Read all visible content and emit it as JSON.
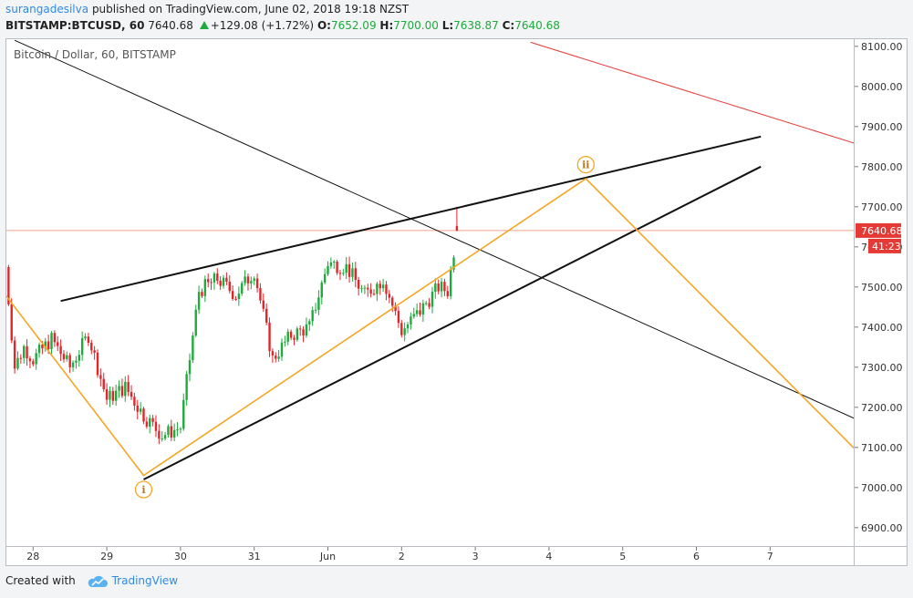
{
  "header": {
    "author": "surangadesilva",
    "published": "published on TradingView.com, June 02, 2018 19:18 NZST",
    "symbol": "BITSTAMP:BTCUSD, 60",
    "price": "7640.68",
    "change": "+129.08 (+1.72%)",
    "o_label": "O:",
    "o_value": "7652.09",
    "h_label": "H:",
    "h_value": "7700.00",
    "l_label": "L:",
    "l_value": "7638.87",
    "c_label": "C:",
    "c_value": "7640.68"
  },
  "legend": "Bitcoin / Dollar, 60, BITSTAMP",
  "price_tag": {
    "value": "7640.68",
    "countdown": "41:23"
  },
  "wave_labels": [
    "i",
    "ii"
  ],
  "footer": {
    "created": "Created with",
    "brand": "TradingView"
  },
  "colors": {
    "up": "#1eaa3c",
    "down": "#e0262b",
    "wave": "#f5a623",
    "trend": "#111111",
    "red_line": "#e53935"
  },
  "chart_data": {
    "type": "candlestick",
    "title": "Bitcoin / Dollar, 60, BITSTAMP",
    "ylim": [
      6840,
      8120
    ],
    "yticks": [
      6900,
      7000,
      7100,
      7200,
      7300,
      7400,
      7500,
      7600,
      7700,
      7800,
      7900,
      8000,
      8100
    ],
    "xlim": [
      "May 27 15:00",
      "Jun 8 07:00"
    ],
    "xticks": [
      "28",
      "29",
      "30",
      "31",
      "Jun",
      "2",
      "3",
      "4",
      "5",
      "6",
      "7"
    ],
    "last_price": 7640.68,
    "waypoints": [
      {
        "t": "May 27 15:00",
        "p": 7550
      },
      {
        "t": "May 27 18:00",
        "p": 7300
      },
      {
        "t": "May 27 21:00",
        "p": 7350
      },
      {
        "t": "May 28 00:00",
        "p": 7320
      },
      {
        "t": "May 28 06:00",
        "p": 7370
      },
      {
        "t": "May 28 12:00",
        "p": 7300
      },
      {
        "t": "May 28 18:00",
        "p": 7380
      },
      {
        "t": "May 29 00:00",
        "p": 7220
      },
      {
        "t": "May 29 06:00",
        "p": 7250
      },
      {
        "t": "May 29 12:00",
        "p": 7180
      },
      {
        "t": "May 29 18:00",
        "p": 7130
      },
      {
        "t": "May 30 00:00",
        "p": 7150
      },
      {
        "t": "May 30 06:00",
        "p": 7490
      },
      {
        "t": "May 30 12:00",
        "p": 7520
      },
      {
        "t": "May 30 18:00",
        "p": 7480
      },
      {
        "t": "May 31 00:00",
        "p": 7540
      },
      {
        "t": "May 31 06:00",
        "p": 7320
      },
      {
        "t": "May 31 12:00",
        "p": 7380
      },
      {
        "t": "May 31 18:00",
        "p": 7400
      },
      {
        "t": "Jun 1 00:00",
        "p": 7560
      },
      {
        "t": "Jun 1 06:00",
        "p": 7550
      },
      {
        "t": "Jun 1 12:00",
        "p": 7480
      },
      {
        "t": "Jun 1 18:00",
        "p": 7520
      },
      {
        "t": "Jun 2 00:00",
        "p": 7390
      },
      {
        "t": "Jun 2 06:00",
        "p": 7440
      },
      {
        "t": "Jun 2 12:00",
        "p": 7500
      },
      {
        "t": "Jun 2 15:00",
        "p": 7490
      },
      {
        "t": "Jun 2 18:00",
        "p": 7640
      }
    ],
    "wave_path": [
      {
        "t": "May 27 15:00",
        "p": 7480
      },
      {
        "t": "May 29 12:00",
        "p": 7030
      },
      {
        "t": "Jun 4 12:00",
        "p": 7770
      },
      {
        "t": "Jun 8 07:00",
        "p": 7070
      }
    ],
    "trend_lines": [
      {
        "from": {
          "t": "May 28 09:00",
          "p": 7465
        },
        "to": {
          "t": "Jun 6 21:00",
          "p": 7875
        },
        "width": 2
      },
      {
        "from": {
          "t": "May 29 12:00",
          "p": 7020
        },
        "to": {
          "t": "Jun 6 21:00",
          "p": 7800
        },
        "width": 2
      },
      {
        "from": {
          "t": "May 27 18:00",
          "p": 8115
        },
        "to": {
          "t": "Jun 8 07:00",
          "p": 7160
        },
        "width": 1
      }
    ],
    "red_line": {
      "from": {
        "t": "Jun 3 18:00",
        "p": 8110
      },
      "to": {
        "t": "Jun 8 07:00",
        "p": 7850
      }
    },
    "wave_markers": [
      {
        "label": "i",
        "t": "May 29 12:00",
        "p": 6995
      },
      {
        "label": "ii",
        "t": "Jun 4 12:00",
        "p": 7805
      }
    ]
  }
}
